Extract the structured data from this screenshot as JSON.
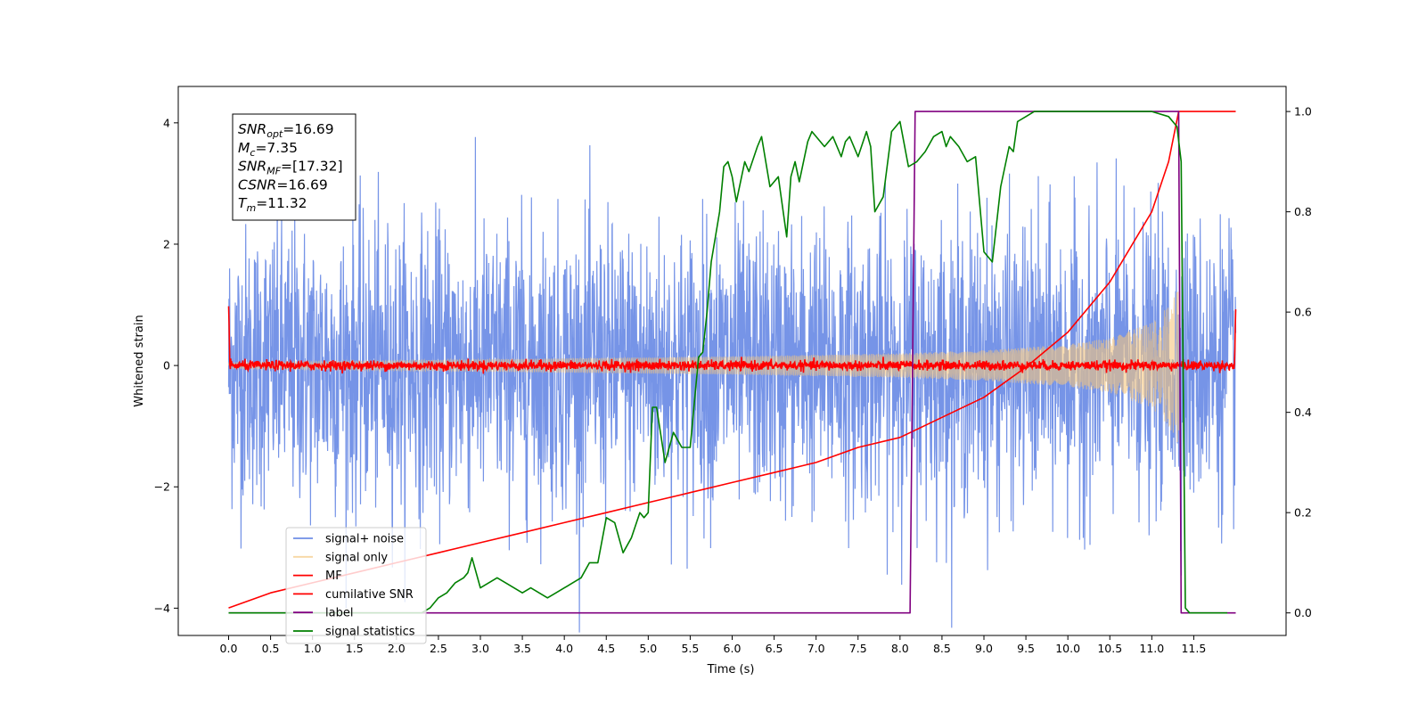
{
  "chart_data": {
    "type": "line",
    "xlabel": "Time (s)",
    "ylabel": "Whitened strain",
    "xlim": [
      -0.6,
      12.6
    ],
    "ylim": [
      -4.45,
      4.6
    ],
    "y2lim": [
      -0.045,
      1.05
    ],
    "x_ticks": [
      0.0,
      0.5,
      1.0,
      1.5,
      2.0,
      2.5,
      3.0,
      3.5,
      4.0,
      4.5,
      5.0,
      5.5,
      6.0,
      6.5,
      7.0,
      7.5,
      8.0,
      8.5,
      9.0,
      9.5,
      10.0,
      10.5,
      11.0,
      11.5
    ],
    "x_tick_labels": [
      "0.0",
      "0.5",
      "1.0",
      "1.5",
      "2.0",
      "2.5",
      "3.0",
      "3.5",
      "4.0",
      "4.5",
      "5.0",
      "5.5",
      "6.0",
      "6.5",
      "7.0",
      "7.5",
      "8.0",
      "8.5",
      "9.0",
      "9.5",
      "10.0",
      "10.5",
      "11.0",
      "11.5"
    ],
    "y_ticks": [
      -4,
      -2,
      0,
      2,
      4
    ],
    "y_tick_labels": [
      "−4",
      "−2",
      "0",
      "2",
      "4"
    ],
    "y2_ticks": [
      0.0,
      0.2,
      0.4,
      0.6,
      0.8,
      1.0
    ],
    "y2_tick_labels": [
      "0.0",
      "0.2",
      "0.4",
      "0.6",
      "0.8",
      "1.0"
    ],
    "legend_placement": "lower-left",
    "grid": false,
    "annotation": [
      {
        "base": "SNR",
        "sub": "opt",
        "value": "=16.69"
      },
      {
        "base": "M",
        "sub": "c",
        "value": "=7.35"
      },
      {
        "base": "SNR",
        "sub": "MF",
        "value": "=[17.32]"
      },
      {
        "base": "CSNR",
        "sub": "",
        "value": "=16.69"
      },
      {
        "base": "T",
        "sub": "m",
        "value": "=11.32"
      }
    ],
    "series": [
      {
        "name": "signal+ noise",
        "color": "#6f8ee6",
        "axis": "left",
        "kind": "noise",
        "x_range": [
          0.0,
          12.0
        ],
        "amplitude_approx": 2.2
      },
      {
        "name": "signal only",
        "color": "#f5c77e",
        "axis": "left",
        "kind": "chirp",
        "x_range": [
          0.0,
          11.32
        ],
        "envelope": {
          "x": [
            0,
            6.0,
            8.0,
            9.0,
            10.0,
            10.5,
            11.0,
            11.2,
            11.32
          ],
          "y": [
            0.05,
            0.15,
            0.2,
            0.25,
            0.35,
            0.45,
            0.7,
            1.0,
            1.3
          ]
        }
      },
      {
        "name": "MF",
        "color": "#ff0000",
        "axis": "left",
        "kind": "mf",
        "x_range": [
          0.0,
          12.0
        ],
        "edge_start": 1.0,
        "edge_end": 0.9
      },
      {
        "name": "cumilative SNR",
        "color": "#ff0000",
        "axis": "right",
        "x": [
          0.0,
          0.5,
          1.0,
          1.5,
          2.0,
          2.5,
          3.0,
          3.5,
          4.0,
          4.5,
          5.0,
          5.5,
          6.0,
          6.5,
          7.0,
          7.5,
          8.0,
          8.5,
          9.0,
          9.5,
          10.0,
          10.5,
          11.0,
          11.2,
          11.32,
          12.0
        ],
        "y": [
          0.01,
          0.04,
          0.06,
          0.08,
          0.1,
          0.12,
          0.14,
          0.16,
          0.18,
          0.2,
          0.22,
          0.24,
          0.26,
          0.28,
          0.3,
          0.33,
          0.35,
          0.39,
          0.43,
          0.49,
          0.56,
          0.66,
          0.8,
          0.9,
          1.0,
          1.0
        ]
      },
      {
        "name": "label",
        "color": "#800080",
        "axis": "right",
        "x": [
          0.0,
          8.12,
          8.18,
          11.32,
          11.35,
          12.0
        ],
        "y": [
          0.0,
          0.0,
          1.0,
          1.0,
          0.0,
          0.0
        ]
      },
      {
        "name": "signal statistics",
        "color": "#008000",
        "axis": "right",
        "x": [
          0.0,
          0.2,
          0.5,
          1.0,
          1.5,
          2.0,
          2.3,
          2.4,
          2.5,
          2.6,
          2.7,
          2.8,
          2.85,
          2.9,
          3.0,
          3.1,
          3.2,
          3.3,
          3.4,
          3.5,
          3.6,
          3.7,
          3.8,
          3.9,
          4.0,
          4.1,
          4.2,
          4.3,
          4.4,
          4.5,
          4.6,
          4.7,
          4.8,
          4.9,
          4.95,
          5.0,
          5.05,
          5.1,
          5.2,
          5.3,
          5.4,
          5.5,
          5.6,
          5.65,
          5.7,
          5.75,
          5.8,
          5.85,
          5.9,
          5.95,
          6.0,
          6.05,
          6.1,
          6.15,
          6.2,
          6.3,
          6.35,
          6.45,
          6.55,
          6.65,
          6.7,
          6.75,
          6.8,
          6.9,
          6.95,
          7.0,
          7.1,
          7.2,
          7.3,
          7.35,
          7.4,
          7.5,
          7.6,
          7.65,
          7.7,
          7.8,
          7.9,
          8.0,
          8.1,
          8.2,
          8.3,
          8.4,
          8.5,
          8.55,
          8.6,
          8.7,
          8.8,
          8.9,
          9.0,
          9.1,
          9.2,
          9.3,
          9.35,
          9.4,
          9.5,
          9.6,
          9.7,
          9.8,
          10.0,
          10.5,
          11.0,
          11.2,
          11.3,
          11.35,
          11.4,
          11.45,
          11.5,
          11.9
        ],
        "y": [
          0.0,
          0.0,
          0.0,
          0.0,
          0.0,
          0.0,
          0.0,
          0.01,
          0.03,
          0.04,
          0.06,
          0.07,
          0.08,
          0.11,
          0.05,
          0.06,
          0.07,
          0.06,
          0.05,
          0.04,
          0.05,
          0.04,
          0.03,
          0.04,
          0.05,
          0.06,
          0.07,
          0.1,
          0.1,
          0.19,
          0.18,
          0.12,
          0.15,
          0.2,
          0.19,
          0.2,
          0.41,
          0.41,
          0.3,
          0.36,
          0.33,
          0.33,
          0.51,
          0.52,
          0.6,
          0.7,
          0.75,
          0.8,
          0.89,
          0.9,
          0.87,
          0.82,
          0.86,
          0.9,
          0.88,
          0.93,
          0.95,
          0.85,
          0.87,
          0.75,
          0.87,
          0.9,
          0.86,
          0.94,
          0.96,
          0.95,
          0.93,
          0.95,
          0.91,
          0.94,
          0.95,
          0.91,
          0.96,
          0.93,
          0.8,
          0.83,
          0.96,
          0.98,
          0.89,
          0.9,
          0.92,
          0.95,
          0.96,
          0.93,
          0.95,
          0.93,
          0.9,
          0.91,
          0.72,
          0.7,
          0.85,
          0.93,
          0.92,
          0.98,
          0.99,
          1.0,
          1.0,
          1.0,
          1.0,
          1.0,
          1.0,
          0.99,
          0.97,
          0.9,
          0.01,
          0.0,
          0.0,
          0.0
        ]
      }
    ]
  }
}
